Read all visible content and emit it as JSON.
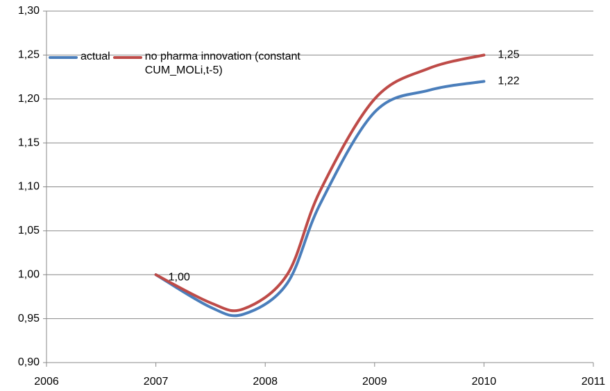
{
  "chart_data": {
    "type": "line",
    "x": [
      2007,
      2007.5,
      2007.8,
      2008.2,
      2008.5,
      2009,
      2009.5,
      2010
    ],
    "series": [
      {
        "name": "actual",
        "color": "#4a7ebb",
        "values": [
          1.0,
          0.963,
          0.955,
          0.99,
          1.08,
          1.185,
          1.21,
          1.22
        ],
        "value_labels": [
          null,
          null,
          null,
          null,
          null,
          null,
          null,
          "1,22"
        ]
      },
      {
        "name": "no pharma innovation (constant CUM_MOLi,t-5)",
        "color": "#be4b48",
        "values": [
          1.0,
          0.968,
          0.961,
          1.0,
          1.095,
          1.2,
          1.235,
          1.25
        ],
        "value_labels": [
          "1,00",
          null,
          null,
          null,
          null,
          null,
          null,
          "1,25"
        ]
      }
    ],
    "xlim": [
      2006,
      2011
    ],
    "xticks": [
      2006,
      2007,
      2008,
      2009,
      2010,
      2011
    ],
    "ylim": [
      0.9,
      1.3
    ],
    "yticks": [
      {
        "value": 0.9,
        "label": "0,90"
      },
      {
        "value": 0.95,
        "label": "0,95"
      },
      {
        "value": 1.0,
        "label": "1,00"
      },
      {
        "value": 1.05,
        "label": "1,05"
      },
      {
        "value": 1.1,
        "label": "1,10"
      },
      {
        "value": 1.15,
        "label": "1,15"
      },
      {
        "value": 1.2,
        "label": "1,20"
      },
      {
        "value": 1.25,
        "label": "1,25"
      },
      {
        "value": 1.3,
        "label": "1,30"
      }
    ],
    "grid": true,
    "legend": "top-left"
  }
}
